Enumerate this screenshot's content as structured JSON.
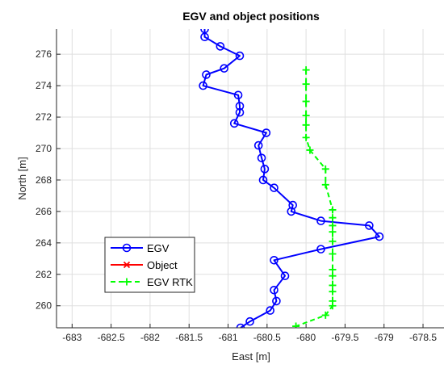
{
  "chart_data": {
    "type": "line",
    "title": "EGV and object positions",
    "xlabel": "East [m]",
    "ylabel": "North [m]",
    "xlim": [
      -683.2,
      -678.2
    ],
    "ylim": [
      258.6,
      277.6
    ],
    "xticks": [
      -683,
      -682.5,
      -682,
      -681.5,
      -681,
      -680.5,
      -680,
      -679.5,
      -679,
      -678.5
    ],
    "xtick_labels": [
      "-683",
      "-682.5",
      "-682",
      "-681.5",
      "-681",
      "-680.5",
      "-680",
      "-679.5",
      "-679",
      "-678.5"
    ],
    "yticks": [
      260,
      262,
      264,
      266,
      268,
      270,
      272,
      274,
      276
    ],
    "ytick_labels": [
      "260",
      "262",
      "264",
      "266",
      "268",
      "270",
      "272",
      "274",
      "276"
    ],
    "grid": true,
    "legend_position": "bottom-left",
    "series": [
      {
        "name": "EGV",
        "color": "#0000ff",
        "marker": "circle",
        "linestyle": "solid",
        "x": [
          -681.3,
          -681.3,
          -681.1,
          -680.85,
          -681.05,
          -681.28,
          -681.32,
          -680.87,
          -680.85,
          -680.85,
          -680.92,
          -680.51,
          -680.61,
          -680.57,
          -680.53,
          -680.55,
          -680.41,
          -680.17,
          -680.19,
          -679.81,
          -679.19,
          -679.06,
          -679.81,
          -680.41,
          -680.27,
          -680.41,
          -680.38,
          -680.46,
          -680.72,
          -680.84
        ],
        "y": [
          277.6,
          277.1,
          276.5,
          275.9,
          275.1,
          274.7,
          274.0,
          273.4,
          272.7,
          272.3,
          271.6,
          271.0,
          270.2,
          269.4,
          268.7,
          268.0,
          267.5,
          266.4,
          266.0,
          265.4,
          265.1,
          264.4,
          263.6,
          262.9,
          261.9,
          261.0,
          260.3,
          259.7,
          259.0,
          258.6
        ]
      },
      {
        "name": "Object",
        "color": "#ff0000",
        "marker": "x",
        "linestyle": "solid",
        "x": [],
        "y": []
      },
      {
        "name": "EGV RTK",
        "color": "#00ff00",
        "marker": "plus",
        "linestyle": "dashed",
        "x": [
          -680.0,
          -680.0,
          -680.0,
          -680.0,
          -680.0,
          -680.0,
          -679.95,
          -679.75,
          -679.75,
          -679.66,
          -679.66,
          -679.66,
          -679.66,
          -679.66,
          -679.66,
          -679.66,
          -679.66,
          -679.66,
          -679.66,
          -679.66,
          -679.66,
          -679.75,
          -680.13
        ],
        "y": [
          275.0,
          274.1,
          273.0,
          272.1,
          271.5,
          270.7,
          269.9,
          268.7,
          267.7,
          266.1,
          265.6,
          265.1,
          264.7,
          264.1,
          263.3,
          262.3,
          261.9,
          261.3,
          260.9,
          260.3,
          260.0,
          259.4,
          258.7
        ]
      }
    ]
  }
}
